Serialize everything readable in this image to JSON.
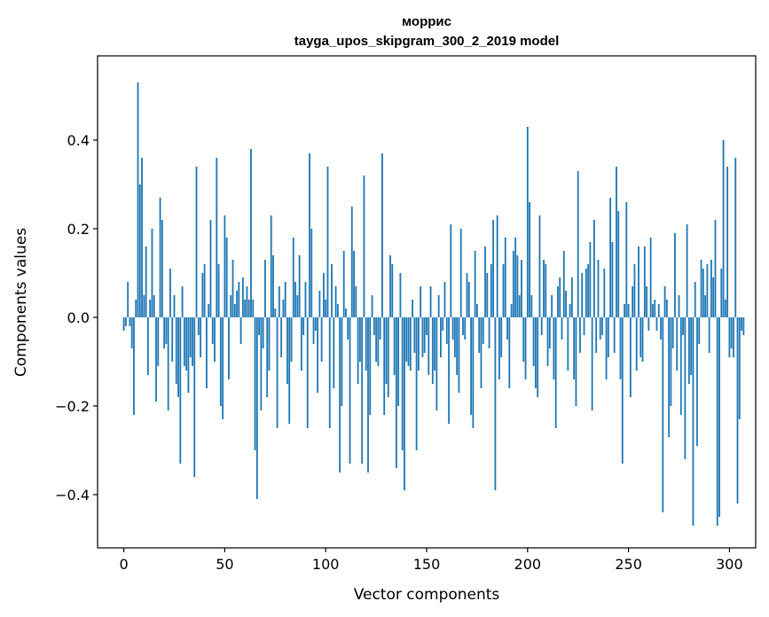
{
  "chart_data": {
    "type": "bar",
    "title_line1": "моррис",
    "title_line2": "tayga_upos_skipgram_300_2_2019 model",
    "xlabel": "Vector components",
    "ylabel": "Components values",
    "xlim": [
      -13,
      313
    ],
    "ylim": [
      -0.52,
      0.59
    ],
    "xticks": [
      0,
      50,
      100,
      150,
      200,
      250,
      300
    ],
    "xtick_labels": [
      "0",
      "50",
      "100",
      "150",
      "200",
      "250",
      "300"
    ],
    "yticks": [
      -0.4,
      -0.2,
      0.0,
      0.2,
      0.4
    ],
    "ytick_labels": [
      "−0.4",
      "−0.2",
      "0.0",
      "0.2",
      "0.4"
    ],
    "bar_color": "#1f77b4",
    "grid": false,
    "values": [
      -0.03,
      -0.02,
      0.08,
      -0.02,
      -0.07,
      -0.22,
      0.04,
      0.53,
      0.3,
      0.36,
      0.05,
      0.16,
      -0.13,
      0.04,
      0.2,
      0.05,
      -0.19,
      -0.11,
      0.27,
      0.22,
      -0.07,
      -0.06,
      -0.21,
      0.11,
      -0.1,
      0.05,
      -0.15,
      -0.18,
      -0.33,
      0.07,
      -0.11,
      -0.12,
      -0.17,
      -0.09,
      -0.11,
      -0.36,
      0.34,
      -0.04,
      -0.09,
      0.1,
      0.12,
      -0.16,
      0.03,
      0.22,
      -0.06,
      -0.1,
      0.36,
      0.12,
      -0.2,
      -0.23,
      0.23,
      0.18,
      -0.14,
      0.05,
      0.13,
      0.03,
      0.06,
      0.08,
      -0.06,
      0.09,
      0.04,
      0.07,
      0.04,
      0.38,
      0.04,
      -0.3,
      -0.41,
      -0.04,
      -0.21,
      -0.07,
      0.13,
      -0.18,
      -0.12,
      0.23,
      0.14,
      0.02,
      -0.25,
      0.07,
      -0.09,
      0.04,
      0.08,
      -0.15,
      -0.24,
      -0.1,
      0.18,
      0.08,
      0.05,
      0.14,
      -0.12,
      -0.04,
      0.08,
      -0.25,
      0.37,
      0.2,
      -0.06,
      -0.03,
      -0.17,
      0.06,
      -0.1,
      0.1,
      0.04,
      0.34,
      -0.25,
      0.12,
      -0.16,
      0.07,
      0.03,
      -0.35,
      -0.2,
      0.15,
      0.02,
      -0.05,
      -0.33,
      0.25,
      0.15,
      0.07,
      -0.15,
      -0.1,
      -0.33,
      0.32,
      -0.12,
      -0.35,
      -0.22,
      0.05,
      -0.04,
      -0.1,
      -0.11,
      -0.05,
      0.37,
      -0.22,
      -0.15,
      -0.18,
      0.14,
      0.12,
      -0.13,
      -0.34,
      -0.2,
      0.1,
      -0.3,
      -0.39,
      -0.1,
      -0.11,
      -0.12,
      0.04,
      -0.08,
      -0.3,
      -0.12,
      0.07,
      -0.09,
      -0.08,
      -0.04,
      -0.13,
      0.07,
      -0.15,
      -0.12,
      -0.21,
      0.05,
      -0.09,
      -0.03,
      0.08,
      -0.06,
      -0.24,
      0.21,
      -0.05,
      -0.09,
      -0.13,
      -0.17,
      0.2,
      -0.04,
      -0.05,
      0.1,
      0.08,
      -0.22,
      -0.25,
      0.15,
      0.03,
      -0.08,
      -0.16,
      -0.06,
      0.16,
      0.1,
      -0.07,
      0.12,
      0.22,
      -0.39,
      0.23,
      -0.14,
      -0.09,
      0.12,
      0.18,
      -0.05,
      -0.16,
      0.03,
      0.15,
      0.18,
      0.14,
      0.05,
      0.13,
      -0.1,
      -0.14,
      0.43,
      0.26,
      0.05,
      -0.11,
      -0.16,
      -0.18,
      0.23,
      -0.04,
      0.13,
      0.12,
      -0.11,
      -0.07,
      0.05,
      -0.14,
      -0.25,
      0.07,
      0.09,
      -0.05,
      0.15,
      0.06,
      -0.12,
      0.03,
      0.09,
      -0.14,
      -0.2,
      0.33,
      -0.08,
      0.1,
      -0.04,
      0.11,
      0.12,
      0.17,
      -0.21,
      0.22,
      -0.08,
      0.13,
      -0.05,
      -0.04,
      0.11,
      -0.14,
      -0.09,
      0.27,
      0.17,
      -0.08,
      0.34,
      0.24,
      -0.14,
      -0.33,
      0.03,
      0.26,
      0.03,
      -0.18,
      0.07,
      0.12,
      -0.12,
      0.16,
      -0.09,
      -0.1,
      0.16,
      0.07,
      -0.03,
      0.18,
      0.03,
      0.04,
      -0.03,
      0.03,
      -0.05,
      -0.44,
      0.07,
      0.04,
      -0.27,
      -0.2,
      -0.07,
      0.19,
      -0.12,
      0.05,
      -0.22,
      -0.04,
      -0.32,
      0.21,
      -0.15,
      -0.13,
      -0.47,
      0.08,
      -0.29,
      -0.06,
      0.13,
      0.11,
      0.05,
      0.12,
      -0.08,
      0.13,
      0.09,
      0.22,
      -0.47,
      -0.45,
      0.11,
      0.4,
      0.04,
      0.34,
      -0.09,
      -0.07,
      -0.09,
      0.36,
      -0.42,
      -0.23,
      -0.03,
      -0.04
    ]
  }
}
